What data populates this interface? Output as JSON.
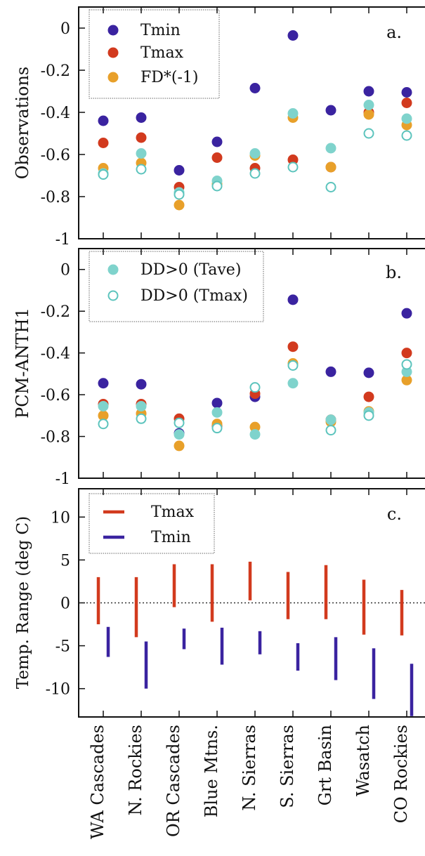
{
  "categories": [
    "WA Cascades",
    "N. Rockies",
    "OR Cascades",
    "Blue Mtns.",
    "N. Sierras",
    "S. Sierras",
    "Grt Basin",
    "Wasatch",
    "CO Rockies"
  ],
  "colors": {
    "tmin": "#3a23a0",
    "tmax": "#d23a1e",
    "fd": "#e8a02a",
    "dd_tave": "#7fd3cc",
    "dd_tmax_stroke": "#5cc4bd"
  },
  "chart_data": [
    {
      "type": "scatter",
      "panel_label": "a.",
      "ylabel": "Observations",
      "ylim": [
        -1,
        0.1
      ],
      "yticks": [
        0,
        -0.2,
        -0.4,
        -0.6,
        -0.8,
        -1
      ],
      "ytick_labels": [
        "0",
        "-0.2",
        "-0.4",
        "-0.6",
        "-0.8",
        "-1"
      ],
      "legend": {
        "placement": "top-left",
        "items": [
          {
            "label": "Tmin",
            "series": "tmin"
          },
          {
            "label": "Tmax",
            "series": "tmax"
          },
          {
            "label": "FD*(-1)",
            "series": "fd"
          }
        ]
      },
      "series": [
        {
          "key": "tmin",
          "name": "Tmin",
          "marker": "filled",
          "values": [
            -0.44,
            -0.425,
            -0.675,
            -0.54,
            -0.285,
            -0.035,
            -0.39,
            -0.3,
            -0.305
          ]
        },
        {
          "key": "tmax",
          "name": "Tmax",
          "marker": "filled",
          "values": [
            -0.545,
            -0.52,
            -0.755,
            -0.615,
            -0.665,
            -0.625,
            -0.66,
            -0.4,
            -0.355
          ]
        },
        {
          "key": "fd",
          "name": "FD*(-1)",
          "marker": "filled",
          "values": [
            -0.665,
            -0.64,
            -0.84,
            -0.74,
            -0.605,
            -0.425,
            -0.66,
            -0.41,
            -0.46
          ]
        },
        {
          "key": "dd_tave",
          "name": "DD>0 (Tave)",
          "marker": "filled",
          "values": [
            -0.69,
            -0.595,
            -0.78,
            -0.725,
            -0.595,
            -0.405,
            -0.57,
            -0.365,
            -0.43
          ]
        },
        {
          "key": "dd_tmax",
          "name": "DD>0 (Tmax)",
          "marker": "open",
          "values": [
            -0.695,
            -0.67,
            -0.79,
            -0.75,
            -0.69,
            -0.66,
            -0.755,
            -0.5,
            -0.51
          ]
        }
      ]
    },
    {
      "type": "scatter",
      "panel_label": "b.",
      "ylabel": "PCM-ANTH1",
      "ylim": [
        -1,
        0.1
      ],
      "yticks": [
        0,
        -0.2,
        -0.4,
        -0.6,
        -0.8,
        -1
      ],
      "ytick_labels": [
        "0",
        "-0.2",
        "-0.4",
        "-0.6",
        "-0.8",
        "-1"
      ],
      "legend": {
        "placement": "top-left",
        "items": [
          {
            "label": "DD>0 (Tave)",
            "series": "dd_tave"
          },
          {
            "label": "DD>0 (Tmax)",
            "series": "dd_tmax"
          }
        ]
      },
      "series": [
        {
          "key": "tmin",
          "name": "Tmin",
          "marker": "filled",
          "values": [
            -0.545,
            -0.55,
            -0.785,
            -0.64,
            -0.61,
            -0.145,
            -0.49,
            -0.495,
            -0.21
          ]
        },
        {
          "key": "tmax",
          "name": "Tmax",
          "marker": "filled",
          "values": [
            -0.645,
            -0.645,
            -0.715,
            -0.75,
            -0.595,
            -0.37,
            -0.72,
            -0.61,
            -0.4
          ]
        },
        {
          "key": "fd",
          "name": "FD*(-1)",
          "marker": "filled",
          "values": [
            -0.7,
            -0.69,
            -0.845,
            -0.74,
            -0.755,
            -0.45,
            -0.73,
            -0.68,
            -0.53
          ]
        },
        {
          "key": "dd_tave",
          "name": "DD>0 (Tave)",
          "marker": "filled",
          "values": [
            -0.655,
            -0.655,
            -0.79,
            -0.685,
            -0.79,
            -0.545,
            -0.72,
            -0.685,
            -0.49
          ]
        },
        {
          "key": "dd_tmax",
          "name": "DD>0 (Tmax)",
          "marker": "open",
          "values": [
            -0.74,
            -0.715,
            -0.735,
            -0.76,
            -0.565,
            -0.46,
            -0.77,
            -0.7,
            -0.455
          ]
        }
      ]
    },
    {
      "type": "range",
      "panel_label": "c.",
      "ylabel": "Temp. Range (deg C)",
      "ylim": [
        -13.3,
        13.3
      ],
      "yticks": [
        10,
        5,
        0,
        -5,
        -10
      ],
      "ytick_labels": [
        "10",
        "5",
        "0",
        "-5",
        "-10"
      ],
      "zero_line": true,
      "legend": {
        "placement": "top-left",
        "items": [
          {
            "label": "Tmax",
            "series": "tmax"
          },
          {
            "label": "Tmin",
            "series": "tmin"
          }
        ]
      },
      "series": [
        {
          "key": "tmax",
          "name": "Tmax",
          "ranges": [
            [
              -2.5,
              3.0
            ],
            [
              -4.0,
              3.0
            ],
            [
              -0.5,
              4.5
            ],
            [
              -2.2,
              4.5
            ],
            [
              0.3,
              4.8
            ],
            [
              -1.9,
              3.6
            ],
            [
              -1.9,
              4.4
            ],
            [
              -3.7,
              2.7
            ],
            [
              -3.8,
              1.5
            ]
          ]
        },
        {
          "key": "tmin",
          "name": "Tmin",
          "ranges": [
            [
              -6.3,
              -2.8
            ],
            [
              -10.0,
              -4.5
            ],
            [
              -5.4,
              -3.0
            ],
            [
              -7.2,
              -2.9
            ],
            [
              -6.0,
              -3.3
            ],
            [
              -7.9,
              -4.7
            ],
            [
              -9.0,
              -4.0
            ],
            [
              -11.2,
              -5.3
            ],
            [
              -13.2,
              -7.1
            ]
          ]
        }
      ]
    }
  ]
}
